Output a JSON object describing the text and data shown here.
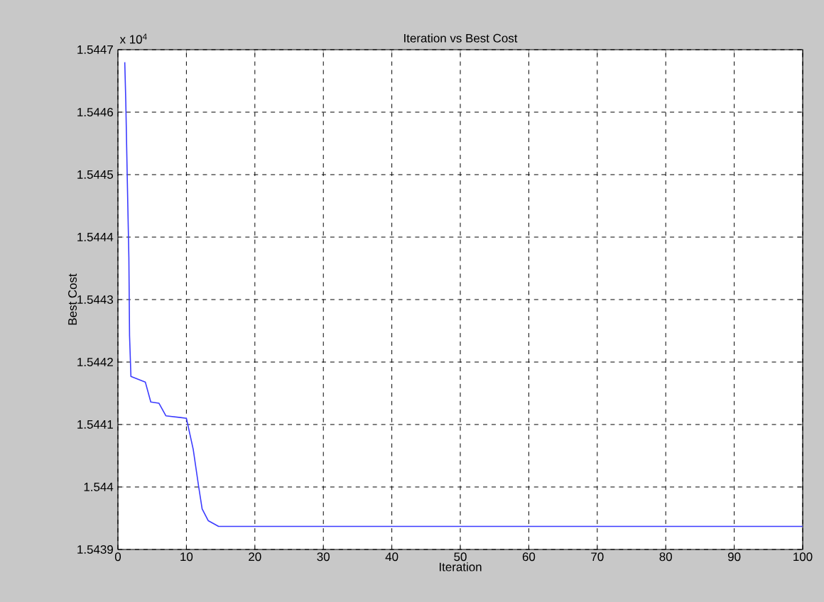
{
  "chart_data": {
    "type": "line",
    "title": "Iteration vs Best Cost",
    "xlabel": "Iteration",
    "ylabel": "Best Cost",
    "annotations": [
      "x 10$^{4}$"
    ],
    "x": [
      1,
      1.15,
      1.37,
      1.6,
      1.7,
      1.9,
      4,
      4.8,
      6,
      7,
      10,
      11,
      11.8,
      12.3,
      13.2,
      14.7,
      100
    ],
    "series": [
      {
        "color": "#3b3bff",
        "values": [
          1.54468,
          1.544617,
          1.544492,
          1.544367,
          1.544242,
          1.544177,
          1.544168,
          1.544136,
          1.544134,
          1.544114,
          1.54411,
          1.54406,
          1.544,
          1.543965,
          1.543946,
          1.543937,
          1.543937
        ]
      }
    ],
    "xlim": [
      0,
      100
    ],
    "xticks": [
      0,
      10,
      20,
      30,
      40,
      50,
      60,
      70,
      80,
      90,
      100
    ],
    "ylim": [
      1.5439,
      1.5447
    ],
    "yticks": [
      1.5439,
      1.544,
      1.5441,
      1.5442,
      1.5443,
      1.5444,
      1.5445,
      1.5446,
      1.5447
    ],
    "grid": true,
    "line_style": "solid",
    "marker": "none"
  }
}
